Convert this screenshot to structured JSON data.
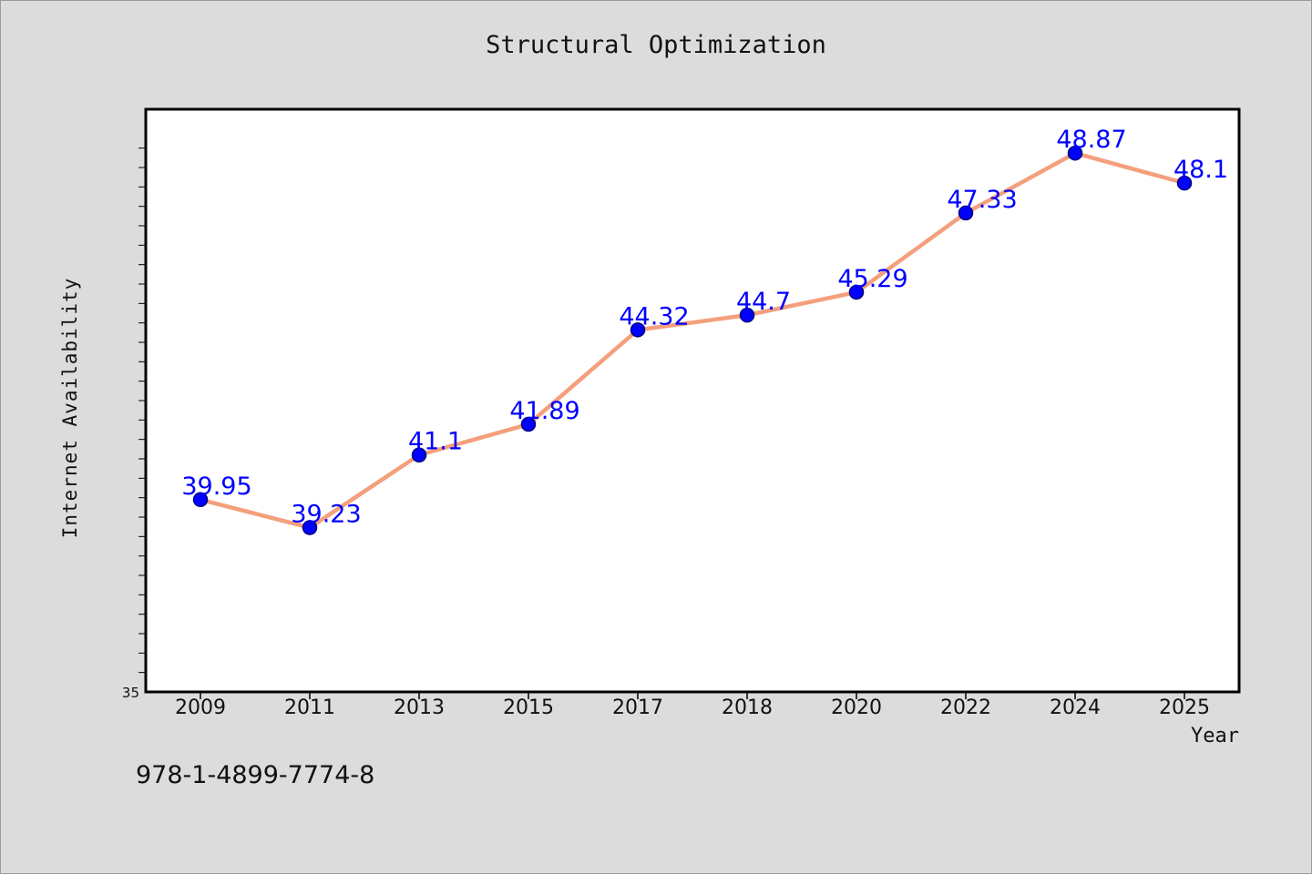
{
  "chart_data": {
    "type": "line",
    "title": "Structural Optimization",
    "xlabel": "Year",
    "ylabel": "Internet Availability",
    "categories": [
      "2009",
      "2011",
      "2013",
      "2015",
      "2017",
      "2018",
      "2020",
      "2022",
      "2024",
      "2025"
    ],
    "series": [
      {
        "values": [
          39.95,
          39.23,
          41.1,
          41.89,
          44.32,
          44.7,
          45.29,
          47.33,
          48.87,
          48.1
        ]
      }
    ],
    "data_labels": [
      "39.95",
      "39.23",
      "41.1",
      "41.89",
      "44.32",
      "44.7",
      "45.29",
      "47.33",
      "48.87",
      "48.1"
    ],
    "y_tick_labels": [
      "35"
    ],
    "ylim": [
      35,
      50
    ],
    "grid": false,
    "colors": {
      "line": "#f4a07c",
      "marker": "#0000ff",
      "marker_edge": "#000080",
      "data_label": "#0000ff",
      "background": "#dcdcdc",
      "plot_background": "#ffffff"
    }
  },
  "footer": {
    "isbn": "978-1-4899-7774-8"
  }
}
